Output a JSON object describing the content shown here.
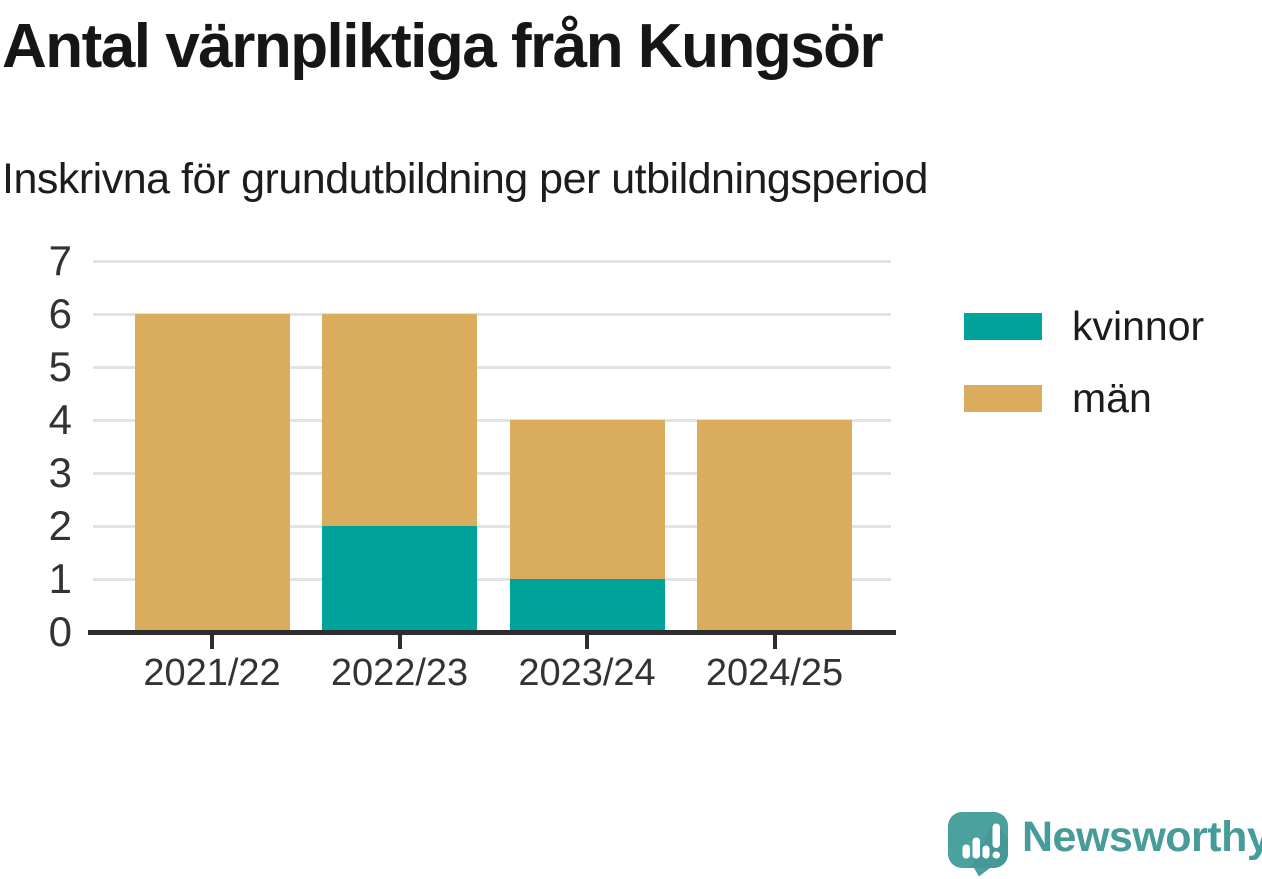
{
  "header": {
    "title": "Antal värnpliktiga från Kungsör",
    "subtitle": "Inskrivna för grundutbildning per utbildningsperiod"
  },
  "chart_data": {
    "type": "bar",
    "stacked": true,
    "title": "Antal värnpliktiga från Kungsör",
    "subtitle": "Inskrivna för grundutbildning per utbildningsperiod",
    "categories": [
      "2021/22",
      "2022/23",
      "2023/24",
      "2024/25"
    ],
    "series": [
      {
        "name": "kvinnor",
        "color": "#00a39a",
        "values": [
          0,
          2,
          1,
          0
        ]
      },
      {
        "name": "män",
        "color": "#d9ac5e",
        "values": [
          6,
          4,
          3,
          4
        ]
      }
    ],
    "ylim": [
      0,
      7
    ],
    "yticks": [
      0,
      1,
      2,
      3,
      4,
      5,
      6,
      7
    ],
    "xlabel": "",
    "ylabel": "",
    "grid": "horizontal",
    "legend_position": "right"
  },
  "branding": {
    "logo_text": "Newsworthy",
    "logo_color": "#479b99",
    "logo_icon": "newsworthy-speech-bubble-bar-chart-icon"
  },
  "colors": {
    "background": "#ffffff",
    "gridline": "#e3e3e3",
    "axis": "#2d2d2d",
    "axis_text": "#333333",
    "title_text": "#161616"
  }
}
